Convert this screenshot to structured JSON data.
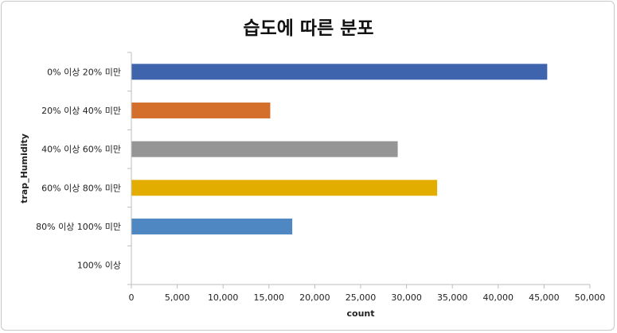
{
  "chart_data": {
    "type": "bar",
    "orientation": "horizontal",
    "title": "습도에 따른 분포",
    "xlabel": "count",
    "ylabel": "trap_Humidity",
    "xlim": [
      0,
      50000
    ],
    "xticks": [
      "0",
      "5,000",
      "10,000",
      "15,000",
      "20,000",
      "25,000",
      "30,000",
      "35,000",
      "40,000",
      "45,000",
      "50,000"
    ],
    "categories": [
      "0% 이상 20% 미만",
      "20% 이상 40% 미만",
      "40% 이상 60% 미만",
      "60% 이상 80% 미만",
      "80% 이상 100% 미만",
      "100% 이상"
    ],
    "values": [
      45300,
      15100,
      29000,
      33300,
      17500,
      0
    ],
    "colors": [
      "#3d64ad",
      "#d46f2b",
      "#959595",
      "#e3ad00",
      "#4f87c3",
      "#4f87c3"
    ],
    "grid": false,
    "legend": "none"
  }
}
